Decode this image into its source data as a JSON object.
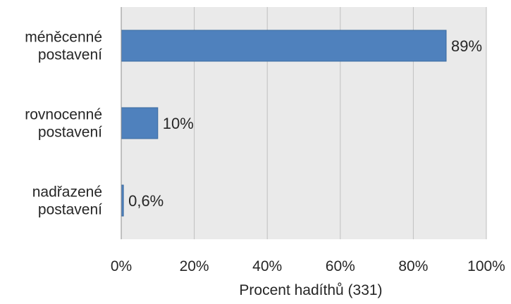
{
  "chart_data": {
    "type": "bar",
    "orientation": "horizontal",
    "categories": [
      [
        "méněcenné",
        "postavení"
      ],
      [
        "rovnocenné",
        "postavení"
      ],
      [
        "nadřazené",
        "postavení"
      ]
    ],
    "values": [
      89,
      10,
      0.6
    ],
    "data_labels": [
      "89%",
      "10%",
      "0,6%"
    ],
    "xlabel": "Procent hadíthů (331)",
    "ylabel": "",
    "title": "",
    "xlim": [
      0,
      100
    ],
    "xticks": [
      0,
      20,
      40,
      60,
      80,
      100
    ],
    "xtick_labels": [
      "0%",
      "20%",
      "40%",
      "60%",
      "80%",
      "100%"
    ],
    "grid": true,
    "legend": "none",
    "colors": {
      "bar": "#4F81BD",
      "bar_stroke": "#3A6AA0",
      "plot_background": "#EAEAEA",
      "gridline": "#BFBFBF",
      "axis_line": "#8C8C8C"
    }
  }
}
